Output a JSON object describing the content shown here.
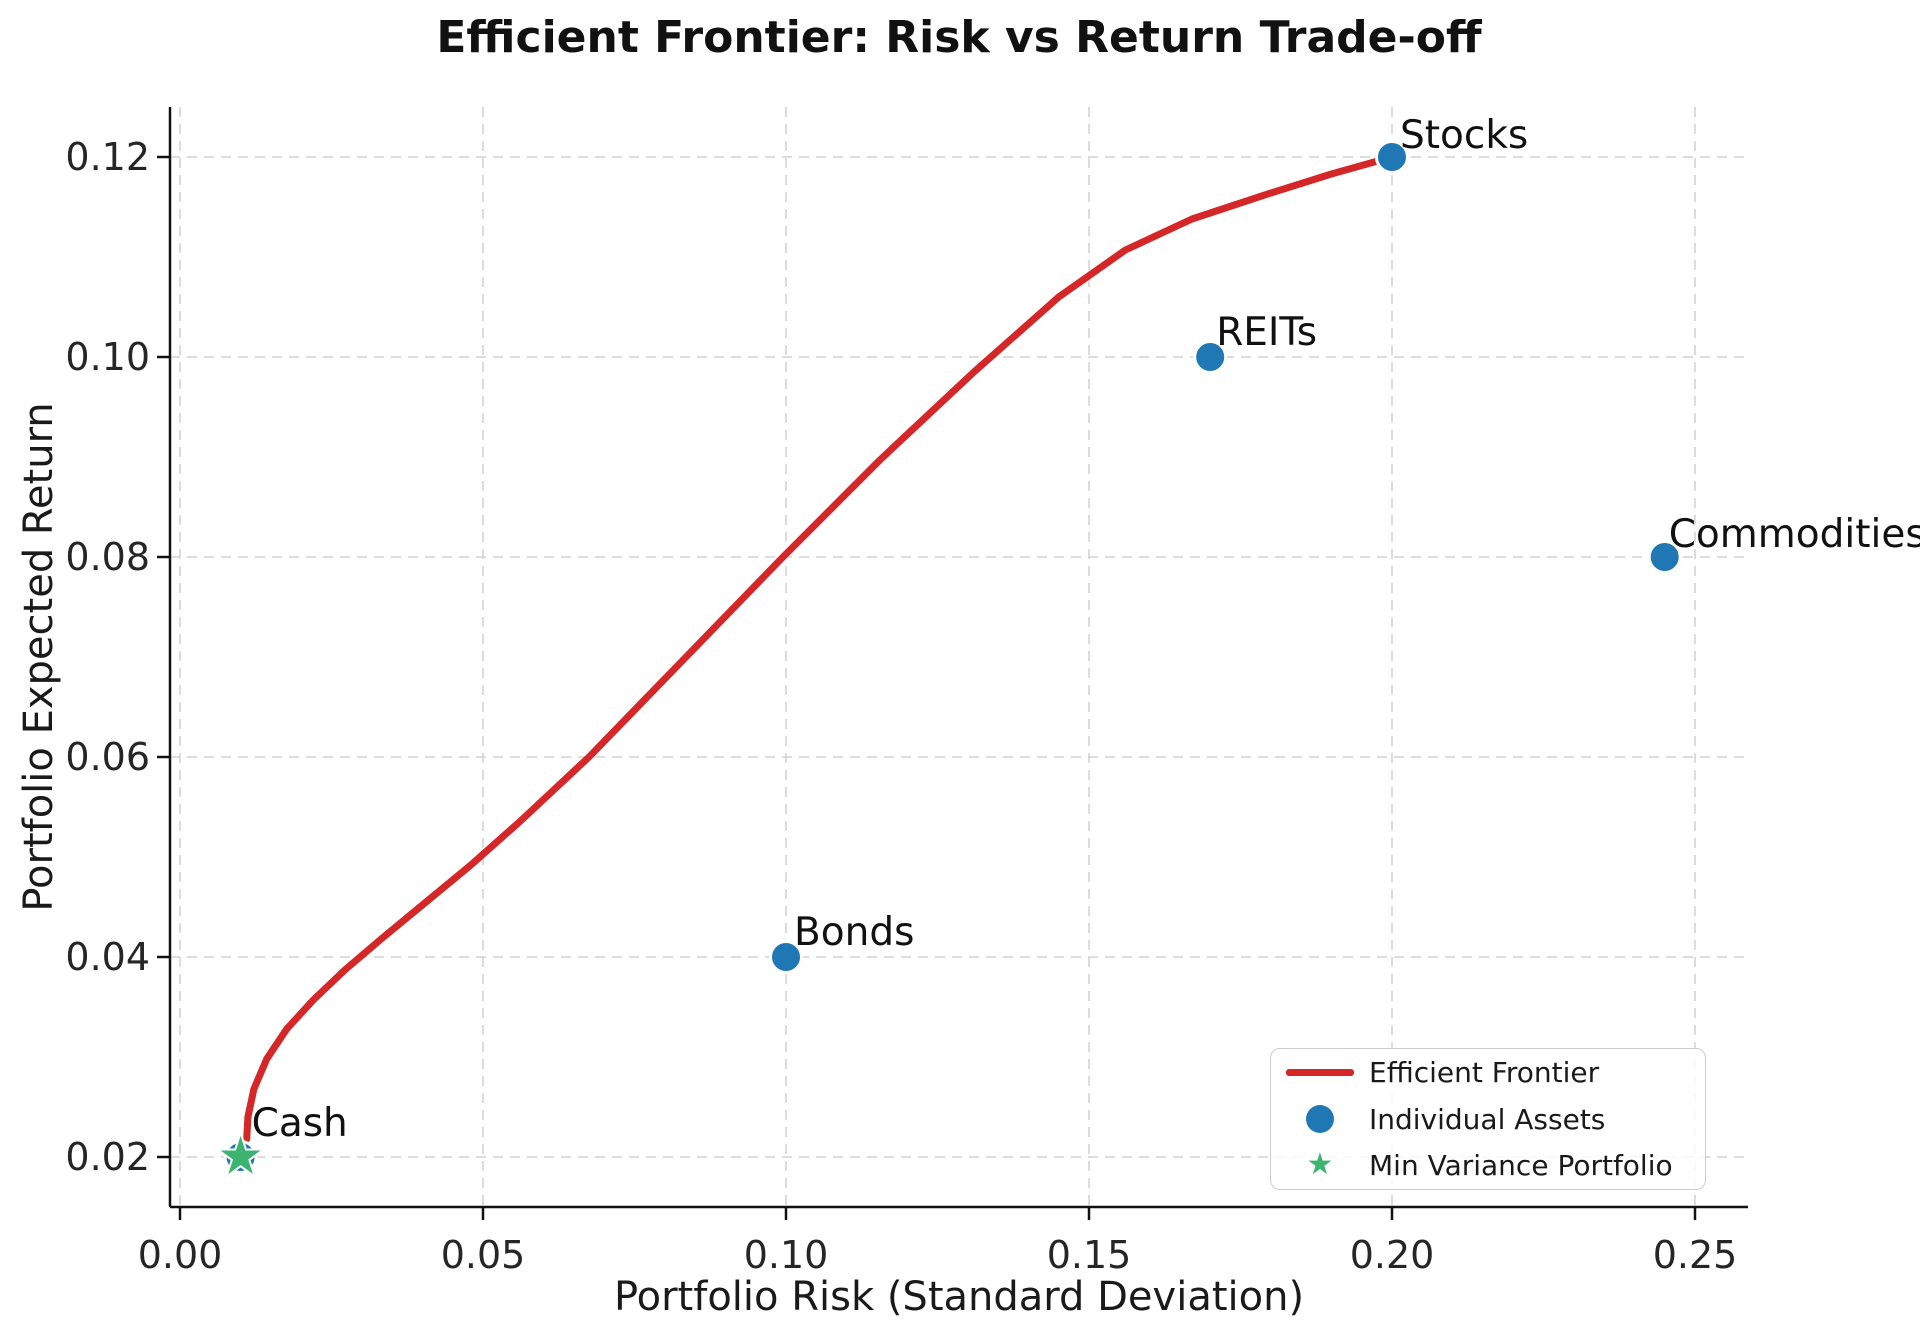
{
  "chart_data": {
    "type": "scatter",
    "title": "Efficient Frontier: Risk vs Return Trade-off",
    "xlabel": "Portfolio Risk (Standard Deviation)",
    "ylabel": "Portfolio Expected Return",
    "xlim": [
      -0.0015,
      0.2588
    ],
    "ylim": [
      0.015,
      0.125
    ],
    "grid": true,
    "xticks": {
      "values": [
        0.0,
        0.05,
        0.1,
        0.15,
        0.2,
        0.25
      ],
      "labels": [
        "0.00",
        "0.05",
        "0.10",
        "0.15",
        "0.20",
        "0.25"
      ]
    },
    "yticks": {
      "values": [
        0.02,
        0.04,
        0.06,
        0.08,
        0.1,
        0.12
      ],
      "labels": [
        "0.02",
        "0.04",
        "0.06",
        "0.08",
        "0.10",
        "0.12"
      ]
    },
    "frontier": {
      "name": "Efficient Frontier",
      "color": "#d62728",
      "points": [
        [
          0.011,
          0.0218
        ],
        [
          0.0112,
          0.024
        ],
        [
          0.0122,
          0.0268
        ],
        [
          0.0143,
          0.0298
        ],
        [
          0.0176,
          0.0328
        ],
        [
          0.022,
          0.0357
        ],
        [
          0.0272,
          0.0387
        ],
        [
          0.033,
          0.0417
        ],
        [
          0.04,
          0.0452
        ],
        [
          0.048,
          0.0492
        ],
        [
          0.056,
          0.0535
        ],
        [
          0.0675,
          0.06
        ],
        [
          0.0835,
          0.07
        ],
        [
          0.0995,
          0.08
        ],
        [
          0.1155,
          0.0897
        ],
        [
          0.131,
          0.0985
        ],
        [
          0.145,
          0.106
        ],
        [
          0.156,
          0.1107
        ],
        [
          0.167,
          0.1138
        ],
        [
          0.18,
          0.1164
        ],
        [
          0.19,
          0.1183
        ],
        [
          0.2,
          0.12
        ]
      ]
    },
    "assets": {
      "name": "Individual Assets",
      "color": "#1f77b4",
      "points": [
        {
          "label": "Cash",
          "risk": 0.01,
          "return": 0.02
        },
        {
          "label": "Bonds",
          "risk": 0.1,
          "return": 0.04
        },
        {
          "label": "REITs",
          "risk": 0.17,
          "return": 0.1
        },
        {
          "label": "Stocks",
          "risk": 0.2,
          "return": 0.12
        },
        {
          "label": "Commodities",
          "risk": 0.245,
          "return": 0.08
        }
      ]
    },
    "min_variance": {
      "name": "Min Variance Portfolio",
      "color": "#3cb371",
      "point": {
        "risk": 0.01,
        "return": 0.02
      }
    },
    "legend": {
      "position": "lower right",
      "entries": [
        {
          "label": "Efficient Frontier",
          "marker": "line",
          "color": "#d62728"
        },
        {
          "label": "Individual Assets",
          "marker": "dot",
          "color": "#1f77b4"
        },
        {
          "label": "Min Variance Portfolio",
          "marker": "star",
          "color": "#3cb371"
        }
      ]
    },
    "colors": {
      "grid": "#cfcfcf",
      "spine": "#111111",
      "tick_text": "#262626",
      "text": "#1a1a1a",
      "title_text": "#111111",
      "background": "#ffffff",
      "marker_edge": "#ffffff"
    }
  }
}
